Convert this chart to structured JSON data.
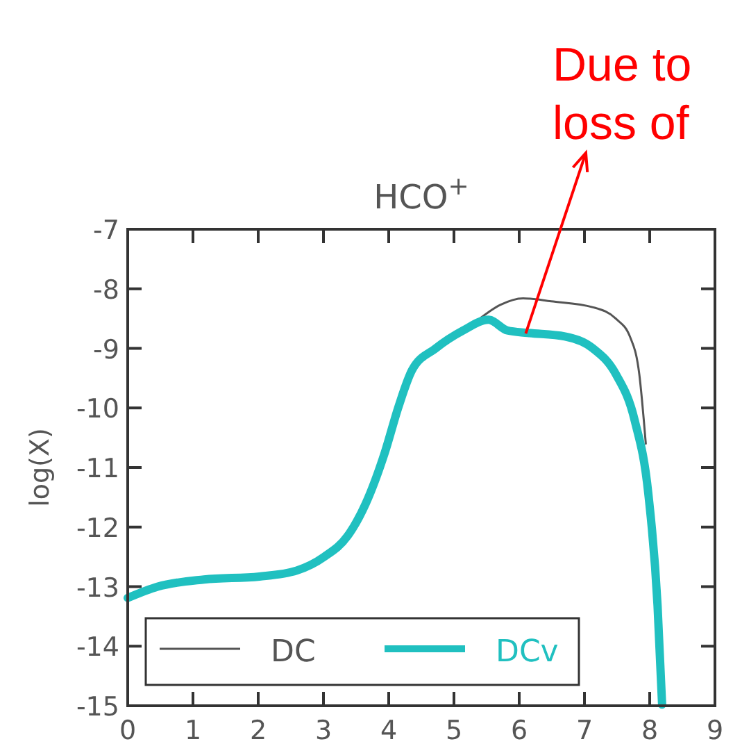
{
  "chart_data": {
    "type": "line",
    "title": "HCO$^{+}$",
    "ylabel": "log(X)",
    "annotations": [
      {
        "text": "Due to loss of",
        "x": 6.1,
        "y": -8.75
      }
    ],
    "xlim": [
      0,
      9
    ],
    "ylim": [
      -15,
      -7
    ],
    "xticks": [
      0,
      1,
      2,
      3,
      4,
      5,
      6,
      7,
      8,
      9
    ],
    "yticks": [
      -15,
      -14,
      -13,
      -12,
      -11,
      -10,
      -9,
      -8,
      -7
    ],
    "grid": false,
    "legend": "bottom left",
    "marker": "none",
    "line_style": "solid",
    "series": [
      {
        "name": "DC",
        "color": "#555555",
        "x": [
          5.35,
          5.71,
          6.06,
          6.49,
          7.13,
          7.48,
          7.7,
          7.84,
          7.94
        ],
        "values": [
          -8.54,
          -8.27,
          -8.16,
          -8.21,
          -8.31,
          -8.5,
          -8.81,
          -9.43,
          -10.6
        ]
      },
      {
        "name": "DCv",
        "color": "#20c0c0",
        "x": [
          0,
          0.46,
          1.17,
          2.02,
          2.59,
          3.01,
          3.37,
          3.65,
          3.94,
          4.15,
          4.36,
          4.72,
          5.14,
          5.53,
          5.82,
          6.13,
          6.7,
          7.13,
          7.48,
          7.77,
          7.98,
          8.12,
          8.19
        ],
        "values": [
          -13.19,
          -13.0,
          -12.88,
          -12.83,
          -12.73,
          -12.5,
          -12.15,
          -11.6,
          -10.75,
          -9.98,
          -9.36,
          -9.0,
          -8.7,
          -8.52,
          -8.7,
          -8.74,
          -8.8,
          -9.0,
          -9.43,
          -10.21,
          -11.45,
          -13.31,
          -14.98
        ]
      }
    ]
  }
}
